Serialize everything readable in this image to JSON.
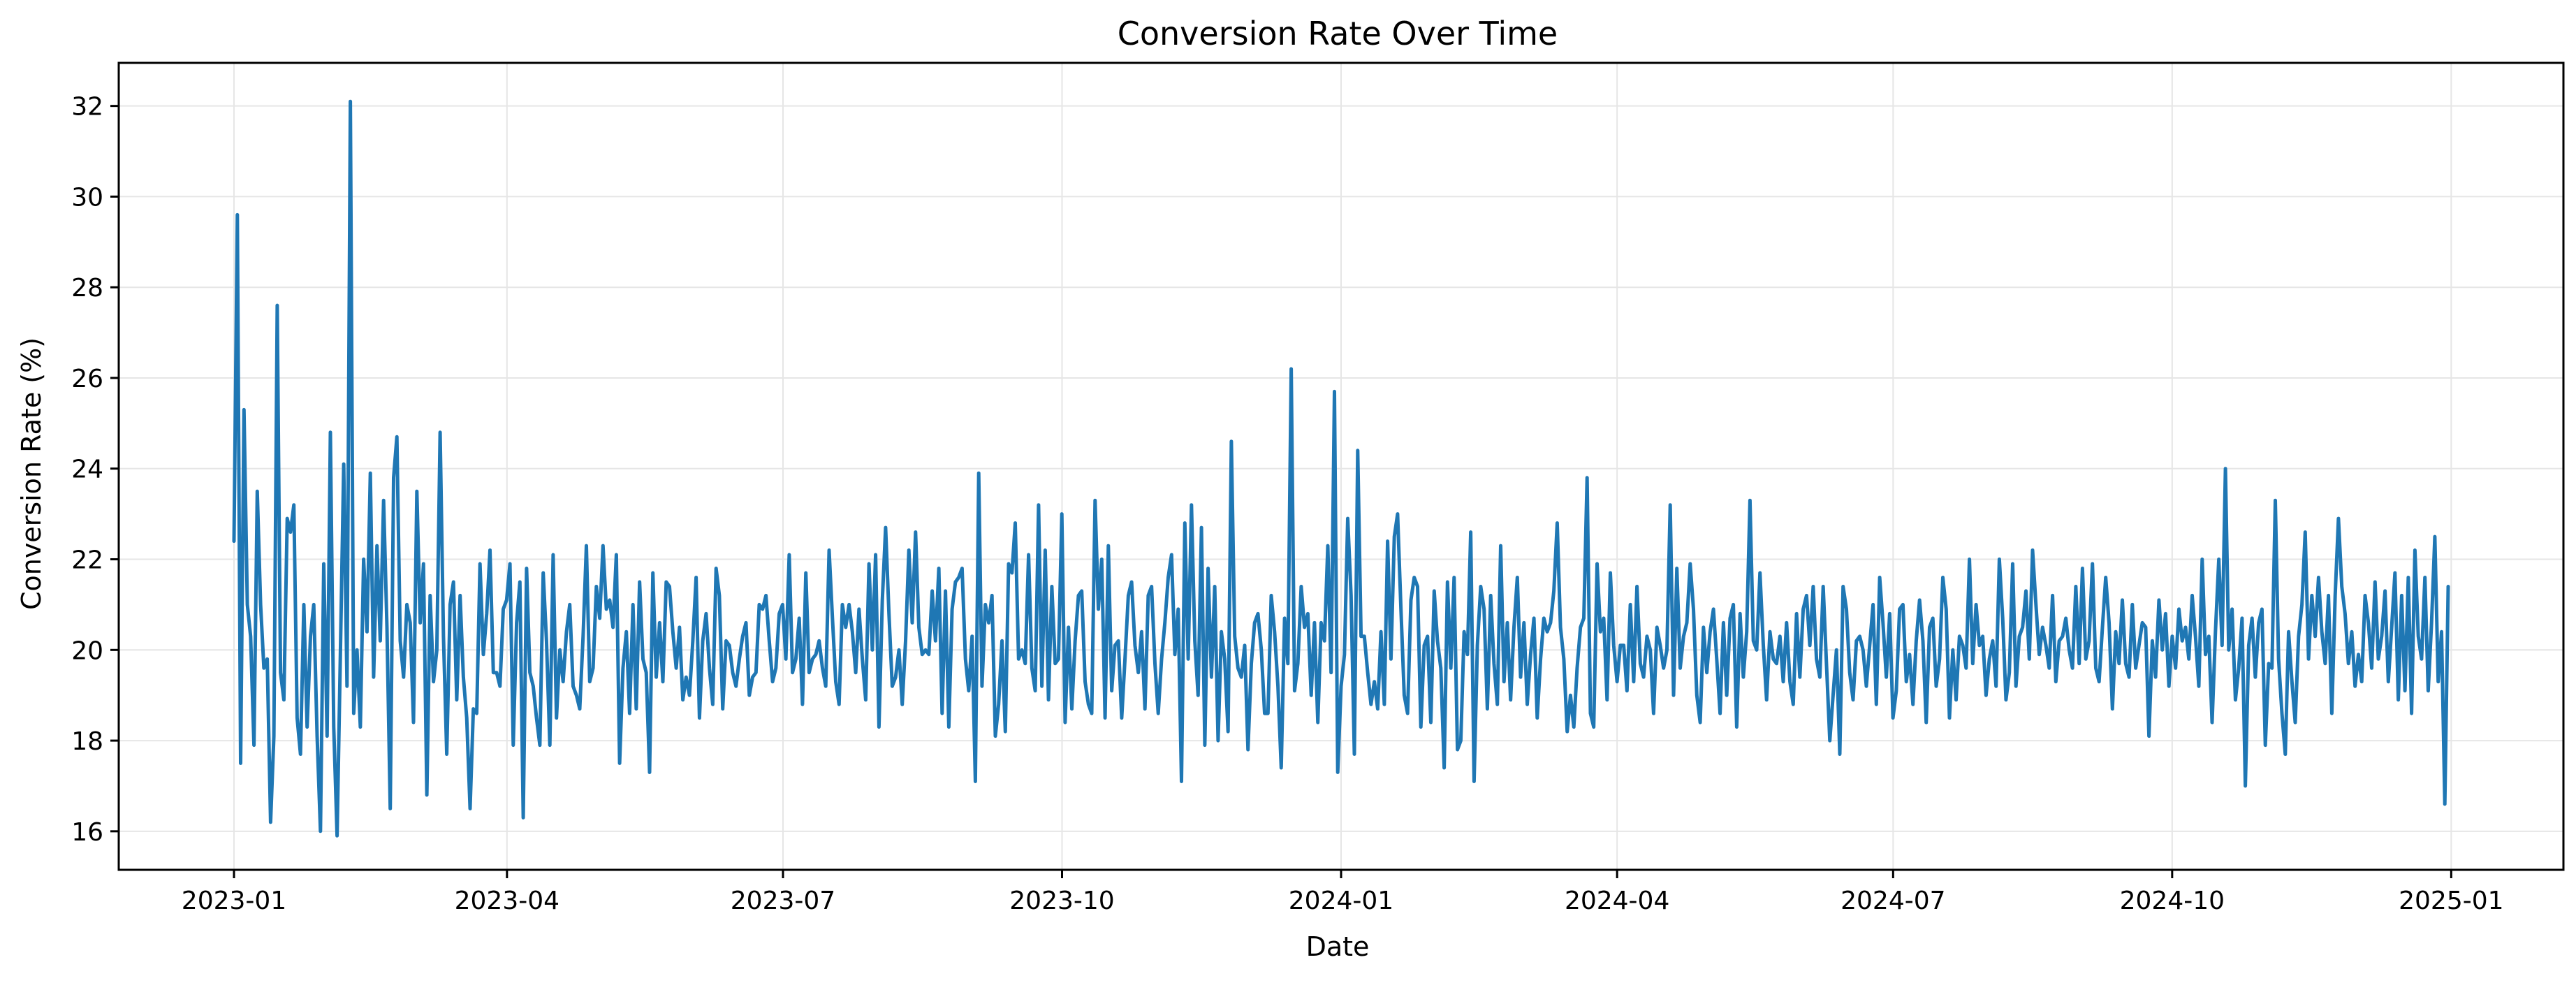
{
  "chart_data": {
    "type": "line",
    "title": "Conversion Rate Over Time",
    "xlabel": "Date",
    "ylabel": "Conversion Rate (%)",
    "x_ticks": [
      "2023-01",
      "2023-04",
      "2023-07",
      "2023-10",
      "2024-01",
      "2024-04",
      "2024-07",
      "2024-10",
      "2025-01"
    ],
    "y_ticks": [
      "16",
      "18",
      "20",
      "22",
      "24",
      "26",
      "28",
      "30",
      "32"
    ],
    "ylim": [
      15.15,
      32.95
    ],
    "xlim": [
      "2022-11-24",
      "2025-02-07"
    ],
    "grid": true,
    "colors": {
      "line": "#1f77b4",
      "grid": "#e6e6e6",
      "axes": "#000000"
    },
    "series": [
      {
        "start": "2023-01-01",
        "end": "2024-12-31",
        "frequency": "daily",
        "values": [
          22.4,
          29.6,
          17.5,
          25.3,
          21.0,
          20.3,
          17.9,
          23.5,
          21.0,
          19.6,
          19.8,
          16.2,
          18.1,
          27.6,
          19.5,
          18.9,
          22.9,
          22.6,
          23.2,
          18.5,
          17.7,
          21.0,
          18.3,
          20.3,
          21.0,
          18.1,
          16.0,
          21.9,
          18.1,
          24.8,
          18.3,
          15.9,
          19.9,
          24.1,
          19.2,
          32.1,
          18.6,
          20.0,
          18.3,
          22.0,
          20.4,
          23.9,
          19.4,
          22.3,
          20.2,
          23.3,
          20.5,
          16.5,
          23.8,
          24.7,
          20.2,
          19.4,
          21.0,
          20.6,
          18.4,
          23.5,
          20.6,
          21.9,
          16.8,
          21.2,
          19.3,
          20.0,
          24.8,
          20.3,
          17.7,
          21.0,
          21.5,
          18.9,
          21.2,
          19.4,
          18.5,
          16.5,
          18.7,
          18.6,
          21.9,
          19.9,
          20.8,
          22.2,
          19.5,
          19.5,
          19.2,
          20.9,
          21.1,
          21.9,
          17.9,
          20.6,
          21.5,
          16.3,
          21.8,
          19.5,
          19.2,
          18.5,
          17.9,
          21.7,
          20.2,
          17.9,
          22.1,
          18.5,
          20.0,
          19.3,
          20.4,
          21.0,
          19.2,
          19.0,
          18.7,
          20.3,
          22.3,
          19.3,
          19.6,
          21.4,
          20.7,
          22.3,
          20.9,
          21.1,
          20.5,
          22.1,
          17.5,
          19.6,
          20.4,
          18.6,
          21.0,
          18.7,
          21.5,
          19.8,
          19.5,
          17.3,
          21.7,
          19.4,
          20.6,
          19.3,
          21.5,
          21.4,
          20.4,
          19.6,
          20.5,
          18.9,
          19.4,
          19.0,
          20.2,
          21.6,
          18.5,
          20.2,
          20.8,
          19.6,
          18.8,
          21.8,
          21.2,
          18.7,
          20.2,
          20.1,
          19.5,
          19.2,
          19.8,
          20.3,
          20.6,
          19.0,
          19.4,
          19.5,
          21.0,
          20.9,
          21.2,
          20.2,
          19.3,
          19.6,
          20.8,
          21.0,
          19.8,
          22.1,
          19.5,
          19.8,
          20.7,
          18.8,
          21.7,
          19.5,
          19.8,
          19.9,
          20.2,
          19.6,
          19.2,
          22.2,
          20.7,
          19.3,
          18.8,
          21.0,
          20.5,
          21.0,
          20.4,
          19.5,
          20.9,
          19.8,
          18.9,
          21.9,
          20.0,
          22.1,
          18.3,
          21.1,
          22.7,
          20.8,
          19.2,
          19.4,
          20.0,
          18.8,
          20.2,
          22.2,
          20.6,
          22.6,
          20.5,
          19.9,
          20.0,
          19.9,
          21.3,
          20.2,
          21.8,
          18.6,
          21.3,
          18.3,
          20.9,
          21.5,
          21.6,
          21.8,
          19.8,
          19.1,
          20.3,
          17.1,
          23.9,
          19.2,
          21.0,
          20.6,
          21.2,
          18.1,
          18.8,
          20.2,
          18.2,
          21.9,
          21.7,
          22.8,
          19.8,
          20.0,
          19.7,
          22.1,
          19.6,
          19.1,
          23.2,
          19.2,
          22.2,
          18.9,
          21.4,
          19.7,
          19.8,
          23.0,
          18.4,
          20.5,
          18.7,
          20.2,
          21.2,
          21.3,
          19.3,
          18.8,
          18.6,
          23.3,
          20.9,
          22.0,
          18.5,
          22.3,
          19.1,
          20.1,
          20.2,
          18.5,
          19.8,
          21.2,
          21.5,
          20.1,
          19.5,
          20.4,
          18.7,
          21.2,
          21.4,
          19.7,
          18.6,
          19.8,
          20.6,
          21.6,
          22.1,
          19.9,
          20.9,
          17.1,
          22.8,
          19.8,
          23.2,
          20.2,
          19.0,
          22.7,
          17.9,
          21.8,
          19.4,
          21.4,
          18.0,
          20.4,
          19.8,
          18.2,
          24.6,
          20.3,
          19.6,
          19.4,
          20.1,
          17.8,
          19.7,
          20.6,
          20.8,
          20.0,
          18.6,
          18.6,
          21.2,
          20.4,
          19.2,
          17.4,
          20.7,
          19.7,
          26.2,
          19.1,
          19.7,
          21.4,
          20.5,
          20.8,
          19.0,
          20.6,
          18.4,
          20.6,
          20.2,
          22.3,
          19.5,
          25.7,
          17.3,
          19.2,
          19.9,
          22.9,
          21.2,
          17.7,
          24.4,
          20.3,
          20.3,
          19.5,
          18.8,
          19.3,
          18.7,
          20.4,
          18.8,
          22.4,
          19.8,
          22.5,
          23.0,
          20.9,
          19.0,
          18.6,
          21.1,
          21.6,
          21.4,
          18.3,
          20.1,
          20.3,
          18.4,
          21.3,
          20.2,
          19.6,
          17.4,
          21.5,
          19.6,
          21.6,
          17.8,
          18.0,
          20.4,
          19.9,
          22.6,
          17.1,
          20.1,
          21.4,
          20.9,
          18.7,
          21.2,
          19.7,
          18.8,
          22.3,
          19.3,
          20.6,
          18.9,
          20.5,
          21.6,
          19.4,
          20.6,
          18.8,
          19.9,
          20.7,
          18.5,
          19.8,
          20.7,
          20.4,
          20.6,
          21.3,
          22.8,
          20.5,
          19.8,
          18.2,
          19.0,
          18.3,
          19.6,
          20.5,
          20.7,
          23.8,
          18.6,
          18.3,
          21.9,
          20.4,
          20.7,
          18.9,
          21.7,
          20.1,
          19.3,
          20.1,
          20.1,
          19.1,
          21.0,
          19.3,
          21.4,
          19.7,
          19.4,
          20.3,
          20.0,
          18.6,
          20.5,
          20.1,
          19.6,
          20.0,
          23.2,
          19.0,
          21.8,
          19.6,
          20.3,
          20.6,
          21.9,
          20.9,
          19.0,
          18.4,
          20.5,
          19.5,
          20.4,
          20.9,
          19.8,
          18.6,
          20.6,
          19.0,
          20.7,
          21.0,
          18.3,
          20.8,
          19.4,
          20.4,
          23.3,
          20.2,
          20.0,
          21.7,
          20.1,
          18.9,
          20.4,
          19.8,
          19.7,
          20.3,
          19.3,
          20.6,
          19.3,
          18.8,
          20.8,
          19.4,
          20.9,
          21.2,
          20.1,
          21.4,
          19.8,
          19.4,
          21.4,
          19.7,
          18.0,
          19.0,
          20.0,
          17.7,
          21.4,
          20.9,
          19.5,
          18.9,
          20.2,
          20.3,
          20.0,
          19.2,
          20.1,
          21.0,
          18.8,
          21.6,
          20.6,
          19.4,
          20.8,
          18.5,
          19.1,
          20.9,
          21.0,
          19.3,
          19.9,
          18.8,
          20.2,
          21.1,
          20.2,
          18.4,
          20.5,
          20.7,
          19.2,
          19.8,
          21.6,
          20.9,
          18.5,
          20.0,
          18.9,
          20.3,
          20.1,
          19.6,
          22.0,
          19.7,
          21.0,
          20.1,
          20.3,
          19.0,
          19.8,
          20.2,
          19.2,
          22.0,
          20.7,
          18.9,
          19.5,
          21.9,
          19.2,
          20.3,
          20.5,
          21.3,
          19.8,
          22.2,
          21.0,
          19.9,
          20.5,
          20.1,
          19.6,
          21.2,
          19.3,
          20.2,
          20.3,
          20.7,
          20.0,
          19.6,
          21.4,
          19.7,
          21.8,
          19.8,
          20.2,
          21.9,
          19.6,
          19.3,
          20.5,
          21.6,
          20.6,
          18.7,
          20.4,
          19.7,
          21.1,
          19.7,
          19.4,
          21.0,
          19.6,
          20.1,
          20.6,
          20.5,
          18.1,
          20.2,
          19.4,
          21.1,
          20.0,
          20.8,
          19.2,
          20.3,
          19.6,
          20.9,
          20.2,
          20.5,
          19.8,
          21.2,
          20.3,
          19.2,
          22.0,
          19.9,
          20.3,
          18.4,
          20.4,
          22.0,
          20.1,
          24.0,
          20.0,
          20.9,
          18.9,
          19.6,
          20.7,
          17.0,
          20.1,
          20.7,
          19.4,
          20.6,
          20.9,
          17.9,
          19.7,
          19.6,
          23.3,
          19.8,
          18.6,
          17.7,
          20.4,
          19.3,
          18.4,
          20.3,
          21.0,
          22.6,
          19.8,
          21.2,
          20.3,
          21.6,
          20.4,
          19.7,
          21.2,
          18.6,
          21.2,
          22.9,
          21.4,
          20.8,
          19.7,
          20.4,
          19.2,
          19.9,
          19.3,
          21.2,
          20.6,
          19.6,
          21.5,
          19.8,
          20.3,
          21.3,
          19.3,
          20.5,
          21.7,
          18.9,
          21.2,
          19.1,
          21.6,
          18.6,
          22.2,
          20.3,
          19.8,
          21.6,
          19.1,
          20.6,
          22.5,
          19.3,
          20.4,
          16.6,
          21.4
        ]
      }
    ]
  }
}
